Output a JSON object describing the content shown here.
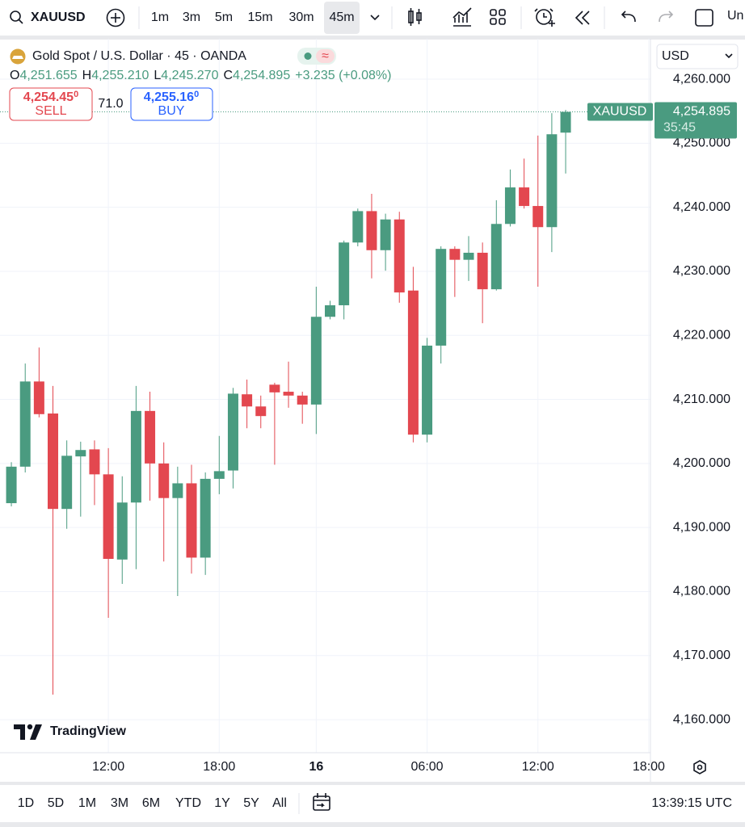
{
  "toolbar": {
    "symbol": "XAUUSD",
    "intervals": [
      "1m",
      "3m",
      "5m",
      "15m",
      "30m",
      "45m"
    ],
    "active_interval": 5,
    "cut_label": "Un"
  },
  "legend": {
    "title": "Gold Spot / U.S. Dollar · 45 · OANDA",
    "ohlc": [
      {
        "label": "O",
        "value": "4,251.655"
      },
      {
        "label": "H",
        "value": "4,255.210"
      },
      {
        "label": "L",
        "value": "4,245.270"
      },
      {
        "label": "C",
        "value": "4,254.895"
      }
    ],
    "change": "+3.235 (+0.08%)"
  },
  "trade": {
    "sell_price": "4,254.45",
    "sell_pip": "0",
    "sell_label": "SELL",
    "spread": "71.0",
    "buy_price": "4,255.16",
    "buy_pip": "0",
    "buy_label": "BUY"
  },
  "currency": "USD",
  "logo": "TradingView",
  "chart_data": {
    "type": "candlestick",
    "up_color": "#4a9b80",
    "down_color": "#e3474f",
    "grid": true,
    "x": [
      0,
      1,
      2,
      3,
      4,
      5,
      6,
      7,
      8,
      9,
      10,
      11,
      12,
      13,
      14,
      15,
      16,
      17,
      18,
      19,
      20,
      21,
      22,
      23,
      24,
      25,
      26,
      27,
      28,
      29,
      30,
      31,
      32,
      33,
      34,
      35,
      36,
      37,
      38,
      39,
      40
    ],
    "series": [
      {
        "name": "XAUUSD",
        "open": [
          4193.8,
          4199.5,
          4212.8,
          4207.8,
          4192.9,
          4201.1,
          4202.2,
          4198.3,
          4185.0,
          4193.9,
          4208.2,
          4200.0,
          4194.6,
          4196.9,
          4185.3,
          4197.6,
          4198.9,
          4210.8,
          4208.9,
          4212.3,
          4211.2,
          4210.6,
          4209.2,
          4222.9,
          4224.7,
          4234.5,
          4239.4,
          4233.3,
          4238.1,
          4227.0,
          4204.5,
          4218.4,
          4233.5,
          4231.8,
          4232.9,
          4227.2,
          4237.4,
          4243.1,
          4240.2,
          4236.9,
          4251.655
        ],
        "high": [
          4200.2,
          4215.6,
          4218.1,
          4212.1,
          4203.6,
          4203.4,
          4203.6,
          4202.4,
          4198.0,
          4212.1,
          4211.2,
          4203.3,
          4199.5,
          4199.8,
          4198.6,
          4204.3,
          4211.8,
          4213.1,
          4210.6,
          4212.6,
          4215.9,
          4211.2,
          4227.6,
          4225.4,
          4234.8,
          4239.8,
          4242.1,
          4239.0,
          4239.3,
          4230.7,
          4219.6,
          4233.9,
          4233.9,
          4235.5,
          4234.5,
          4241.1,
          4245.9,
          4247.6,
          4251.2,
          4254.7,
          4255.21
        ],
        "low": [
          4193.3,
          4198.6,
          4207.2,
          4163.9,
          4189.8,
          4191.7,
          4193.5,
          4175.9,
          4181.2,
          4183.5,
          4194.2,
          4184.7,
          4179.3,
          4182.8,
          4182.6,
          4195.2,
          4196.1,
          4205.5,
          4205.5,
          4199.8,
          4208.7,
          4206.2,
          4204.6,
          4222.5,
          4222.5,
          4233.9,
          4228.9,
          4230.1,
          4225.1,
          4203.3,
          4203.3,
          4215.6,
          4226.0,
          4228.5,
          4221.9,
          4227.0,
          4237.0,
          4239.8,
          4227.6,
          4233.0,
          4245.27
        ],
        "close": [
          4199.5,
          4212.8,
          4207.7,
          4192.9,
          4201.2,
          4202.1,
          4198.3,
          4185.1,
          4193.9,
          4208.2,
          4200.0,
          4194.6,
          4196.9,
          4185.3,
          4197.6,
          4198.8,
          4210.9,
          4208.9,
          4207.4,
          4211.1,
          4210.6,
          4209.2,
          4222.9,
          4224.7,
          4234.5,
          4239.4,
          4233.3,
          4238.1,
          4226.7,
          4204.5,
          4218.4,
          4233.5,
          4231.8,
          4232.9,
          4227.2,
          4237.4,
          4243.1,
          4240.2,
          4236.9,
          4251.4,
          4254.895
        ]
      }
    ],
    "last_price": 4254.895,
    "last_price_label": "4,254.895",
    "countdown": "35:45",
    "xlim": [
      -0.82,
      46.12
    ],
    "xticks": [
      {
        "value": 7,
        "label": "12:00"
      },
      {
        "value": 15,
        "label": "18:00"
      },
      {
        "value": 22,
        "label": "16"
      },
      {
        "value": 30,
        "label": "06:00"
      },
      {
        "value": 38,
        "label": "12:00"
      },
      {
        "value": 46,
        "label": "18:00"
      }
    ],
    "ylim": [
      4154.84,
      4266.31
    ],
    "yticks": [
      {
        "value": 4160,
        "label": "4,160.000"
      },
      {
        "value": 4170,
        "label": "4,170.000"
      },
      {
        "value": 4180,
        "label": "4,180.000"
      },
      {
        "value": 4190,
        "label": "4,190.000"
      },
      {
        "value": 4200,
        "label": "4,200.000"
      },
      {
        "value": 4210,
        "label": "4,210.000"
      },
      {
        "value": 4220,
        "label": "4,220.000"
      },
      {
        "value": 4230,
        "label": "4,230.000"
      },
      {
        "value": 4240,
        "label": "4,240.000"
      },
      {
        "value": 4250,
        "label": "4,250.000"
      },
      {
        "value": 4260,
        "label": "4,260.000"
      }
    ]
  },
  "bottom": {
    "ranges": [
      "1D",
      "5D",
      "1M",
      "3M",
      "6M",
      "YTD",
      "1Y",
      "5Y",
      "All"
    ],
    "time": "13:39:15 UTC"
  }
}
